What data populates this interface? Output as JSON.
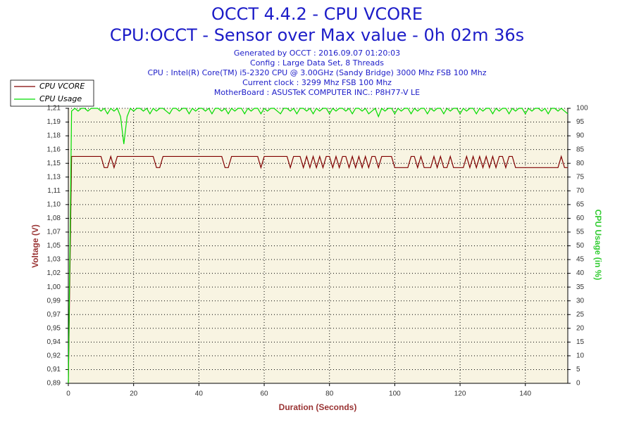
{
  "chart_data": {
    "type": "line",
    "title": "OCCT 4.4.2 - CPU VCORE",
    "subtitle": "CPU:OCCT - Sensor over Max value - 0h 02m 36s",
    "info": [
      "Generated by OCCT : 2016.09.07 01:20:03",
      "Config : Large Data Set, 8 Threads",
      "CPU : Intel(R) Core(TM) i5-2320 CPU @ 3.00GHz (Sandy Bridge) 3000 Mhz FSB 100 Mhz",
      "Current clock : 3299 Mhz FSB 100 Mhz",
      "MotherBoard : ASUSTeK COMPUTER INC.: P8H77-V LE"
    ],
    "xlabel": "Duration (Seconds)",
    "ylabel": "Voltage (V)",
    "y2label": "CPU Usage (in %)",
    "xlim": [
      0,
      153
    ],
    "xticks": [
      0,
      20,
      40,
      60,
      80,
      100,
      120,
      140
    ],
    "ylim": [
      0.89,
      1.21
    ],
    "yticks": [
      {
        "value": 0.89,
        "label": "0,89"
      },
      {
        "value": 0.906,
        "label": "0,91"
      },
      {
        "value": 0.922,
        "label": "0,92"
      },
      {
        "value": 0.938,
        "label": "0,94"
      },
      {
        "value": 0.954,
        "label": "0,95"
      },
      {
        "value": 0.97,
        "label": "0,97"
      },
      {
        "value": 0.986,
        "label": "0,99"
      },
      {
        "value": 1.002,
        "label": "1,00"
      },
      {
        "value": 1.018,
        "label": "1,02"
      },
      {
        "value": 1.034,
        "label": "1,03"
      },
      {
        "value": 1.05,
        "label": "1,05"
      },
      {
        "value": 1.066,
        "label": "1,07"
      },
      {
        "value": 1.082,
        "label": "1,08"
      },
      {
        "value": 1.098,
        "label": "1,10"
      },
      {
        "value": 1.114,
        "label": "1,11"
      },
      {
        "value": 1.13,
        "label": "1,13"
      },
      {
        "value": 1.146,
        "label": "1,15"
      },
      {
        "value": 1.162,
        "label": "1,16"
      },
      {
        "value": 1.178,
        "label": "1,18"
      },
      {
        "value": 1.194,
        "label": "1,19"
      },
      {
        "value": 1.21,
        "label": "1,21"
      }
    ],
    "y2lim": [
      0,
      100
    ],
    "y2ticks": [
      0,
      5,
      10,
      15,
      20,
      25,
      30,
      35,
      40,
      45,
      50,
      55,
      60,
      65,
      70,
      75,
      80,
      85,
      90,
      95,
      100
    ],
    "grid": true,
    "legend": "top-left",
    "x": [
      0,
      1,
      2,
      3,
      4,
      5,
      6,
      7,
      8,
      9,
      10,
      11,
      12,
      13,
      14,
      15,
      16,
      17,
      18,
      19,
      20,
      21,
      22,
      23,
      24,
      25,
      26,
      27,
      28,
      29,
      30,
      31,
      32,
      33,
      34,
      35,
      36,
      37,
      38,
      39,
      40,
      41,
      42,
      43,
      44,
      45,
      46,
      47,
      48,
      49,
      50,
      51,
      52,
      53,
      54,
      55,
      56,
      57,
      58,
      59,
      60,
      61,
      62,
      63,
      64,
      65,
      66,
      67,
      68,
      69,
      70,
      71,
      72,
      73,
      74,
      75,
      76,
      77,
      78,
      79,
      80,
      81,
      82,
      83,
      84,
      85,
      86,
      87,
      88,
      89,
      90,
      91,
      92,
      93,
      94,
      95,
      96,
      97,
      98,
      99,
      100,
      101,
      102,
      103,
      104,
      105,
      106,
      107,
      108,
      109,
      110,
      111,
      112,
      113,
      114,
      115,
      116,
      117,
      118,
      119,
      120,
      121,
      122,
      123,
      124,
      125,
      126,
      127,
      128,
      129,
      130,
      131,
      132,
      133,
      134,
      135,
      136,
      137,
      138,
      139,
      140,
      141,
      142,
      143,
      144,
      145,
      146,
      147,
      148,
      149,
      150,
      151,
      152,
      153
    ],
    "series": [
      {
        "name": "CPU VCORE",
        "color": "#800000",
        "values": [
          0.89,
          1.154,
          1.154,
          1.154,
          1.154,
          1.154,
          1.154,
          1.154,
          1.154,
          1.154,
          1.154,
          1.141,
          1.141,
          1.154,
          1.141,
          1.154,
          1.154,
          1.154,
          1.154,
          1.154,
          1.154,
          1.154,
          1.154,
          1.154,
          1.154,
          1.154,
          1.154,
          1.141,
          1.141,
          1.154,
          1.154,
          1.154,
          1.154,
          1.154,
          1.154,
          1.154,
          1.154,
          1.154,
          1.154,
          1.154,
          1.154,
          1.154,
          1.154,
          1.154,
          1.154,
          1.154,
          1.154,
          1.154,
          1.141,
          1.141,
          1.154,
          1.154,
          1.154,
          1.154,
          1.154,
          1.154,
          1.154,
          1.154,
          1.154,
          1.141,
          1.154,
          1.154,
          1.154,
          1.154,
          1.154,
          1.154,
          1.154,
          1.154,
          1.141,
          1.154,
          1.154,
          1.154,
          1.141,
          1.154,
          1.141,
          1.154,
          1.141,
          1.154,
          1.141,
          1.154,
          1.154,
          1.141,
          1.154,
          1.141,
          1.154,
          1.154,
          1.141,
          1.154,
          1.141,
          1.154,
          1.141,
          1.154,
          1.141,
          1.154,
          1.154,
          1.141,
          1.154,
          1.154,
          1.154,
          1.154,
          1.141,
          1.141,
          1.141,
          1.141,
          1.141,
          1.154,
          1.154,
          1.141,
          1.154,
          1.141,
          1.141,
          1.141,
          1.154,
          1.141,
          1.154,
          1.141,
          1.141,
          1.154,
          1.141,
          1.141,
          1.141,
          1.141,
          1.154,
          1.141,
          1.154,
          1.141,
          1.154,
          1.141,
          1.154,
          1.141,
          1.154,
          1.141,
          1.154,
          1.154,
          1.141,
          1.154,
          1.154,
          1.141,
          1.141,
          1.141,
          1.141,
          1.141,
          1.141,
          1.141,
          1.141,
          1.141,
          1.141,
          1.141,
          1.141,
          1.141,
          1.141,
          1.154,
          1.141,
          1.141
        ]
      },
      {
        "name": "CPU Usage",
        "color": "#00dd00",
        "axis": "y2",
        "values": [
          0,
          99,
          100,
          99,
          100,
          100,
          99,
          100,
          100,
          100,
          99,
          100,
          98,
          100,
          99,
          100,
          97,
          87,
          97,
          100,
          99,
          100,
          100,
          99,
          100,
          98,
          100,
          99,
          100,
          100,
          99,
          98,
          100,
          100,
          99,
          100,
          100,
          98,
          100,
          99,
          100,
          100,
          99,
          100,
          98,
          100,
          100,
          99,
          100,
          98,
          100,
          99,
          100,
          100,
          98,
          100,
          99,
          100,
          100,
          98,
          100,
          99,
          100,
          100,
          99,
          98,
          100,
          100,
          99,
          100,
          98,
          100,
          100,
          99,
          100,
          98,
          100,
          99,
          100,
          100,
          98,
          100,
          99,
          100,
          100,
          99,
          100,
          98,
          100,
          100,
          99,
          100,
          98,
          99,
          100,
          97,
          100,
          99,
          100,
          100,
          98,
          100,
          99,
          100,
          100,
          98,
          100,
          99,
          100,
          100,
          98,
          100,
          99,
          100,
          100,
          98,
          100,
          99,
          100,
          100,
          98,
          100,
          99,
          100,
          100,
          98,
          100,
          99,
          100,
          100,
          98,
          100,
          99,
          100,
          100,
          98,
          100,
          99,
          100,
          100,
          98,
          100,
          99,
          100,
          100,
          99,
          100,
          98,
          100,
          100,
          99,
          100,
          99,
          98
        ]
      }
    ]
  }
}
